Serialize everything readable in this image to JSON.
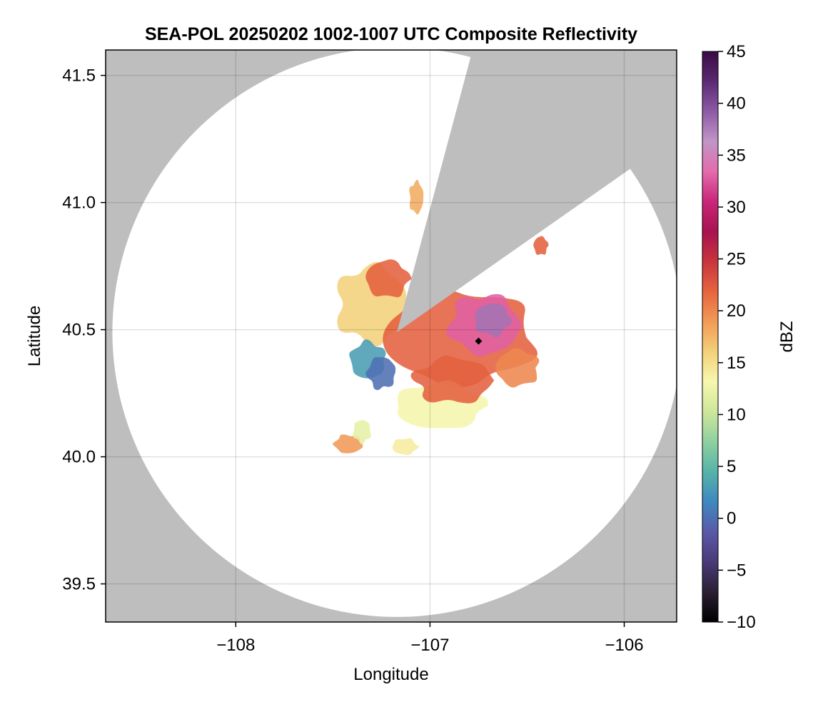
{
  "chart_data": {
    "type": "heatmap",
    "title": "SEA-POL 20250202 1002-1007 UTC Composite Reflectivity",
    "xlabel": "Longitude",
    "ylabel": "Latitude",
    "xlim": [
      -108.67,
      -105.73
    ],
    "ylim": [
      39.35,
      41.6
    ],
    "x_ticks": [
      -108,
      -107,
      -106
    ],
    "y_ticks": [
      39.5,
      40.0,
      40.5,
      41.0,
      41.5
    ],
    "x_tick_labels": [
      "−108",
      "−107",
      "−106"
    ],
    "y_tick_labels": [
      "39.5",
      "40.0",
      "40.5",
      "41.0",
      "41.5"
    ],
    "grid": true,
    "background_color": "#bebebe",
    "coverage_color": "#ffffff",
    "radar": {
      "lon": -107.17,
      "lat": 40.49,
      "range_deg_lat": 1.12,
      "blocked_azimuth_deg": [
        [
          15,
          55
        ]
      ]
    },
    "marker": {
      "lon": -106.75,
      "lat": 40.455,
      "color": "#000000"
    },
    "colorbar": {
      "label": "dBZ",
      "min": -10,
      "max": 45,
      "ticks": [
        -10,
        -5,
        0,
        5,
        10,
        15,
        20,
        25,
        30,
        35,
        40,
        45
      ],
      "tick_labels": [
        "−10",
        "−5",
        "0",
        "5",
        "10",
        "15",
        "20",
        "25",
        "30",
        "35",
        "40",
        "45"
      ],
      "colormap": [
        "#000000",
        "#2a1f33",
        "#4a3a78",
        "#5a5aa8",
        "#3f88c0",
        "#56b3a8",
        "#8fd0a0",
        "#cde79a",
        "#f7f7ae",
        "#f3d07a",
        "#f19b57",
        "#e6643f",
        "#c8353d",
        "#a8124f",
        "#c92778",
        "#e46bac",
        "#c096c6",
        "#8e5aa6",
        "#5a2a72",
        "#3a0a45"
      ]
    },
    "echo_regions": [
      {
        "name": "western-arm",
        "lon": -107.3,
        "lat": 40.6,
        "rlon": 0.2,
        "rlat": 0.17,
        "dbz": 16
      },
      {
        "name": "northwest-cell",
        "lon": -107.22,
        "lat": 40.7,
        "rlon": 0.12,
        "rlat": 0.08,
        "dbz": 22
      },
      {
        "name": "southwest-blue",
        "lon": -107.32,
        "lat": 40.38,
        "rlon": 0.1,
        "rlat": 0.08,
        "dbz": 3
      },
      {
        "name": "southwest-blue-2",
        "lon": -107.25,
        "lat": 40.33,
        "rlon": 0.08,
        "rlat": 0.07,
        "dbz": 0
      },
      {
        "name": "main-band",
        "lon": -106.85,
        "lat": 40.47,
        "rlon": 0.42,
        "rlat": 0.2,
        "dbz": 22
      },
      {
        "name": "main-core",
        "lon": -106.72,
        "lat": 40.52,
        "rlon": 0.2,
        "rlat": 0.13,
        "dbz": 33
      },
      {
        "name": "inner-core",
        "lon": -106.68,
        "lat": 40.54,
        "rlon": 0.1,
        "rlat": 0.07,
        "dbz": 38
      },
      {
        "name": "south-fringe",
        "lon": -106.95,
        "lat": 40.2,
        "rlon": 0.25,
        "rlat": 0.1,
        "dbz": 13
      },
      {
        "name": "south-mid",
        "lon": -106.88,
        "lat": 40.3,
        "rlon": 0.22,
        "rlat": 0.1,
        "dbz": 22
      },
      {
        "name": "southeast-tail",
        "lon": -106.55,
        "lat": 40.35,
        "rlon": 0.12,
        "rlat": 0.08,
        "dbz": 20
      },
      {
        "name": "sw-cell-a",
        "lon": -107.42,
        "lat": 40.05,
        "rlon": 0.08,
        "rlat": 0.04,
        "dbz": 19
      },
      {
        "name": "sw-cell-b",
        "lon": -107.35,
        "lat": 40.1,
        "rlon": 0.05,
        "rlat": 0.05,
        "dbz": 12
      },
      {
        "name": "sw-cell-c",
        "lon": -107.13,
        "lat": 40.04,
        "rlon": 0.07,
        "rlat": 0.035,
        "dbz": 14
      },
      {
        "name": "north-cell",
        "lon": -107.07,
        "lat": 41.02,
        "rlon": 0.04,
        "rlat": 0.07,
        "dbz": 18
      },
      {
        "name": "northeast-cell",
        "lon": -106.43,
        "lat": 40.83,
        "rlon": 0.04,
        "rlat": 0.04,
        "dbz": 22
      }
    ]
  }
}
